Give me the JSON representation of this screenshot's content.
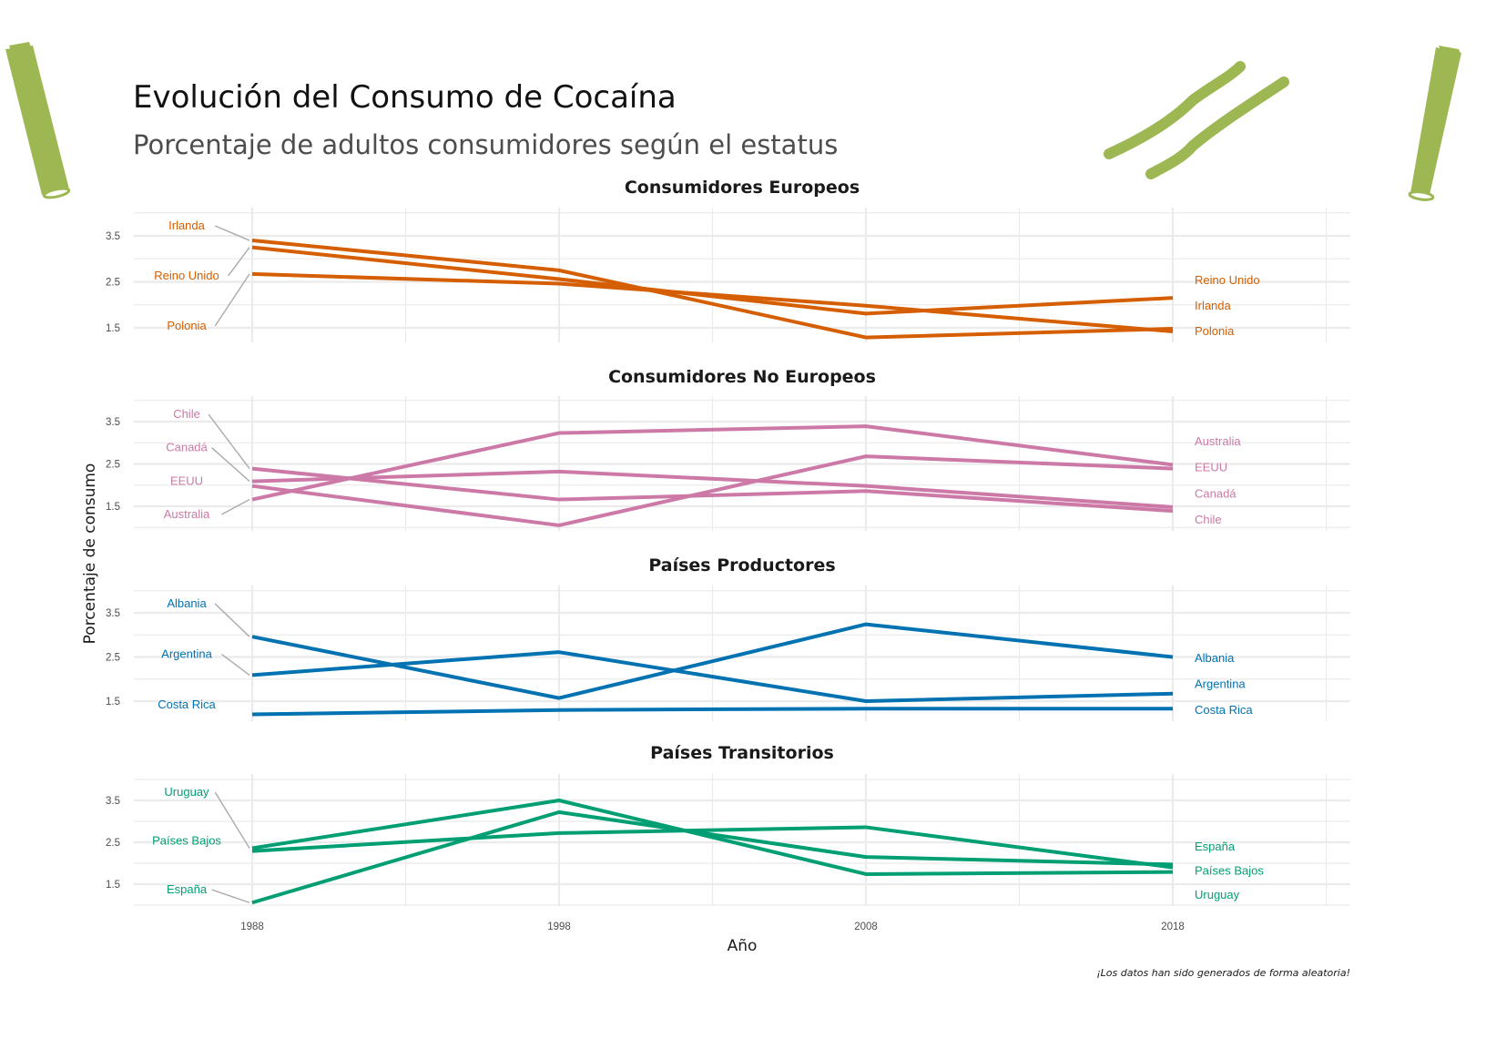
{
  "chart_data": {
    "type": "line",
    "title": "Evolución del Consumo de Cocaína",
    "subtitle": "Porcentaje de adultos consumidores según el estatus",
    "xlabel": "Año",
    "ylabel": "Porcentaje de consumo",
    "caption": "¡Los datos han sido generados de forma aleatoria!",
    "x": [
      1988,
      1998,
      2008,
      2018
    ],
    "x_tick_labels": [
      "1988",
      "1998",
      "2008",
      "2018"
    ],
    "y_tick_labels": [
      "1.5",
      "2.5",
      "3.5"
    ],
    "y_ticks": [
      1.5,
      2.5,
      3.5
    ],
    "grid": true,
    "legend": "direct labels at both line ends",
    "panels": [
      {
        "title": "Consumidores Europeos",
        "color": "#D55E00",
        "series": [
          {
            "name": "Irlanda",
            "values": [
              3.4,
              2.75,
              1.29,
              1.48
            ]
          },
          {
            "name": "Reino Unido",
            "values": [
              3.25,
              2.56,
              1.81,
              2.15
            ]
          },
          {
            "name": "Polonia",
            "values": [
              2.67,
              2.46,
              1.98,
              1.42
            ]
          }
        ]
      },
      {
        "title": "Consumidores No Europeos",
        "color": "#CC79A7",
        "series": [
          {
            "name": "Chile",
            "values": [
              2.39,
              1.66,
              1.86,
              1.39
            ]
          },
          {
            "name": "Canadá",
            "values": [
              2.09,
              2.32,
              1.98,
              1.48
            ]
          },
          {
            "name": "EEUU",
            "values": [
              1.98,
              1.05,
              2.68,
              2.39
            ]
          },
          {
            "name": "Australia",
            "values": [
              1.66,
              3.23,
              3.39,
              2.48
            ]
          }
        ]
      },
      {
        "title": "Países Productores",
        "color": "#0072B2",
        "series": [
          {
            "name": "Albania",
            "values": [
              2.96,
              1.57,
              3.24,
              2.5
            ]
          },
          {
            "name": "Argentina",
            "values": [
              2.09,
              2.61,
              1.5,
              1.67
            ]
          },
          {
            "name": "Costa Rica",
            "values": [
              1.2,
              1.3,
              1.33,
              1.33
            ]
          }
        ]
      },
      {
        "title": "Países Transitorios",
        "color": "#009E73",
        "series": [
          {
            "name": "Uruguay",
            "values": [
              2.36,
              3.5,
              1.74,
              1.79
            ]
          },
          {
            "name": "Países Bajos",
            "values": [
              2.29,
              2.72,
              2.86,
              1.9
            ]
          },
          {
            "name": "España",
            "values": [
              1.06,
              3.22,
              2.15,
              1.97
            ]
          }
        ]
      }
    ],
    "left_label_order": [
      [
        "Irlanda",
        "Reino Unido",
        "Polonia"
      ],
      [
        "Chile",
        "Canadá",
        "EEUU",
        "Australia"
      ],
      [
        "Albania",
        "Argentina",
        "Costa Rica"
      ],
      [
        "Uruguay",
        "Países Bajos",
        "España"
      ]
    ],
    "right_label_order": [
      [
        "Reino Unido",
        "Irlanda",
        "Polonia"
      ],
      [
        "Australia",
        "EEUU",
        "Canadá",
        "Chile"
      ],
      [
        "Albania",
        "Argentina",
        "Costa Rica"
      ],
      [
        "España",
        "Países Bajos",
        "Uruguay"
      ]
    ]
  },
  "decoration": {
    "accent_color": "#9DB853"
  }
}
